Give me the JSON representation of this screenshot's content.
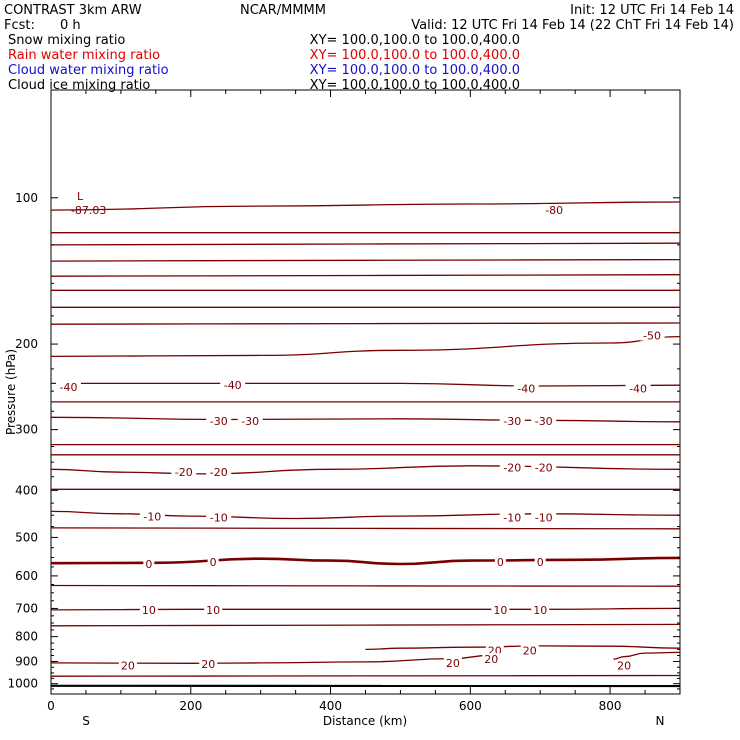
{
  "header": {
    "title": "CONTRAST  3km ARW",
    "org": "NCAR/MMMM",
    "init": "Init: 12 UTC Fri 14 Feb 14",
    "fcst_label": "Fcst:",
    "fcst_value": "0 h",
    "valid": "Valid: 12 UTC Fri 14 Feb 14 (22 ChT Fri 14 Feb 14)"
  },
  "legend": [
    {
      "label": "Snow mixing ratio",
      "xy": "XY= 100.0,100.0 to 100.0,400.0",
      "color": "#000000"
    },
    {
      "label": "Rain water mixing ratio",
      "xy": "XY= 100.0,100.0 to 100.0,400.0",
      "color": "#e00000"
    },
    {
      "label": "Cloud water mixing ratio",
      "xy": "XY= 100.0,100.0 to 100.0,400.0",
      "color": "#1010c8"
    },
    {
      "label": "Cloud ice mixing ratio",
      "xy": "XY= 100.0,100.0 to 100.0,400.0",
      "color": "#000000"
    }
  ],
  "colors": {
    "contour": "#7a0000",
    "axis": "#000000"
  },
  "chart_data": {
    "type": "contour",
    "xlabel": "Distance (km)",
    "ylabel": "Pressure (hPa)",
    "xlim": [
      0,
      900
    ],
    "ylim": [
      1050,
      60
    ],
    "y_scale": "log",
    "x_ticks": [
      "0",
      "200",
      "400",
      "600",
      "800"
    ],
    "y_ticks": [
      "100",
      "200",
      "300",
      "400",
      "500",
      "600",
      "700",
      "800",
      "900",
      "1000"
    ],
    "x_end_labels": {
      "left": "S",
      "right": "N"
    },
    "low_marker": {
      "label": "L",
      "value": "-87.03",
      "x": 40,
      "y": 103
    },
    "contour_labels": [
      {
        "text": "-80",
        "x": 720,
        "y": 106
      },
      {
        "text": "-50",
        "x": 860,
        "y": 192
      },
      {
        "text": "-40",
        "x": 25,
        "y": 245
      },
      {
        "text": "-40",
        "x": 260,
        "y": 243
      },
      {
        "text": "-40",
        "x": 680,
        "y": 247
      },
      {
        "text": "-40",
        "x": 840,
        "y": 247
      },
      {
        "text": "-30",
        "x": 240,
        "y": 288
      },
      {
        "text": "-30",
        "x": 285,
        "y": 288
      },
      {
        "text": "-30",
        "x": 660,
        "y": 288
      },
      {
        "text": "-30",
        "x": 705,
        "y": 288
      },
      {
        "text": "-20",
        "x": 190,
        "y": 367
      },
      {
        "text": "-20",
        "x": 240,
        "y": 367
      },
      {
        "text": "-20",
        "x": 660,
        "y": 359
      },
      {
        "text": "-20",
        "x": 705,
        "y": 359
      },
      {
        "text": "-10",
        "x": 145,
        "y": 453
      },
      {
        "text": "-10",
        "x": 240,
        "y": 455
      },
      {
        "text": "-10",
        "x": 660,
        "y": 455
      },
      {
        "text": "-10",
        "x": 705,
        "y": 455
      },
      {
        "text": "0",
        "x": 140,
        "y": 567
      },
      {
        "text": "0",
        "x": 232,
        "y": 562
      },
      {
        "text": "0",
        "x": 643,
        "y": 562
      },
      {
        "text": "0",
        "x": 700,
        "y": 562
      },
      {
        "text": "10",
        "x": 140,
        "y": 705
      },
      {
        "text": "10",
        "x": 232,
        "y": 705
      },
      {
        "text": "10",
        "x": 643,
        "y": 705
      },
      {
        "text": "10",
        "x": 700,
        "y": 705
      },
      {
        "text": "20",
        "x": 635,
        "y": 854
      },
      {
        "text": "20",
        "x": 685,
        "y": 854
      },
      {
        "text": "20",
        "x": 630,
        "y": 890
      },
      {
        "text": "20",
        "x": 575,
        "y": 906
      },
      {
        "text": "20",
        "x": 110,
        "y": 917
      },
      {
        "text": "20",
        "x": 225,
        "y": 911
      },
      {
        "text": "20",
        "x": 820,
        "y": 917
      }
    ],
    "contours": [
      {
        "value": 0,
        "bold": true,
        "points": [
          [
            0,
            565
          ],
          [
            150,
            564
          ],
          [
            300,
            553
          ],
          [
            400,
            558
          ],
          [
            500,
            567
          ],
          [
            600,
            558
          ],
          [
            750,
            556
          ],
          [
            900,
            551
          ]
        ]
      },
      {
        "value": 10,
        "points": [
          [
            0,
            705
          ],
          [
            200,
            703
          ],
          [
            400,
            703
          ],
          [
            700,
            703
          ],
          [
            900,
            700
          ]
        ]
      },
      {
        "value": 20,
        "points": [
          [
            0,
            906
          ],
          [
            200,
            908
          ],
          [
            300,
            906
          ],
          [
            450,
            902
          ],
          [
            575,
            888
          ],
          [
            630,
            874
          ]
        ]
      },
      {
        "value": 20,
        "points": [
          [
            450,
            850
          ],
          [
            500,
            845
          ],
          [
            600,
            841
          ],
          [
            700,
            836
          ],
          [
            800,
            837
          ],
          [
            900,
            845
          ]
        ]
      },
      {
        "value": 20,
        "points": [
          [
            900,
            862
          ],
          [
            850,
            865
          ],
          [
            820,
            880
          ],
          [
            805,
            890
          ],
          [
            818,
            910
          ]
        ]
      },
      {
        "value": -10,
        "points": [
          [
            0,
            442
          ],
          [
            100,
            447
          ],
          [
            200,
            452
          ],
          [
            350,
            457
          ],
          [
            500,
            452
          ],
          [
            700,
            447
          ],
          [
            900,
            450
          ]
        ]
      },
      {
        "value": -20,
        "points": [
          [
            0,
            362
          ],
          [
            100,
            367
          ],
          [
            220,
            370
          ],
          [
            400,
            362
          ],
          [
            600,
            356
          ],
          [
            900,
            362
          ]
        ]
      },
      {
        "value": -30,
        "points": [
          [
            0,
            283
          ],
          [
            250,
            286
          ],
          [
            500,
            285
          ],
          [
            700,
            287
          ],
          [
            900,
            289
          ]
        ]
      },
      {
        "value": -40,
        "points": [
          [
            0,
            241
          ],
          [
            250,
            241
          ],
          [
            500,
            241
          ],
          [
            700,
            244
          ],
          [
            900,
            243
          ]
        ]
      },
      {
        "value": -50,
        "points": [
          [
            0,
            212
          ],
          [
            300,
            211
          ],
          [
            500,
            206
          ],
          [
            800,
            199
          ],
          [
            900,
            193
          ]
        ]
      },
      {
        "value": -80,
        "points": [
          [
            0,
            106
          ],
          [
            300,
            104
          ],
          [
            600,
            103
          ],
          [
            900,
            102
          ]
        ]
      }
    ]
  }
}
